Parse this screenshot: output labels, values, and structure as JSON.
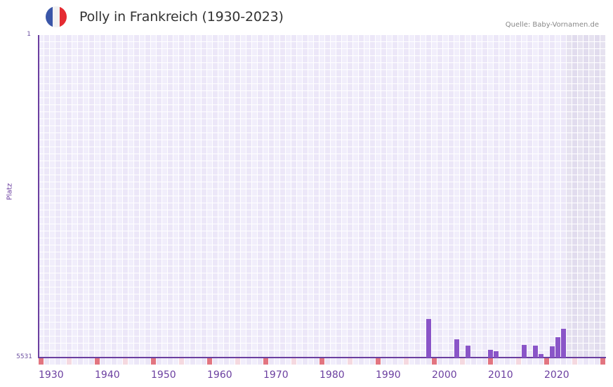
{
  "header": {
    "title": "Polly in Frankreich (1930-2023)",
    "source": "Quelle: Baby-Vornamen.de",
    "flag": {
      "icon": "france-flag-icon",
      "colors": [
        "#3a56a8",
        "#f2f2f2",
        "#e52b32"
      ]
    }
  },
  "colors": {
    "bar": "#8a55c8",
    "axis": "#6b3fa0",
    "cell_a": "#f1eefb",
    "cell_b": "#ece7f8",
    "future_a": "#e6e2f0",
    "future_b": "#e1dcee",
    "decade_marker": "#e27580",
    "half_decade_marker": "#f5d9e0"
  },
  "chart_data": {
    "type": "bar",
    "title": "Polly in Frankreich (1930-2023)",
    "xlabel": "",
    "ylabel": "Platz",
    "y_inverted": true,
    "ylim": [
      1,
      5531
    ],
    "xlim": [
      1930,
      2030
    ],
    "x_tick_labels": [
      "1930",
      "1940",
      "1950",
      "1960",
      "1970",
      "1980",
      "1990",
      "2000",
      "2010",
      "2020"
    ],
    "y_tick_labels": [
      "1",
      "5531"
    ],
    "grid": true,
    "shaded_future_from": 2024,
    "categories": [
      1999,
      2004,
      2006,
      2010,
      2011,
      2016,
      2018,
      2019,
      2021,
      2022,
      2023
    ],
    "values": [
      4870,
      5218,
      5327,
      5399,
      5423,
      5315,
      5327,
      5471,
      5339,
      5182,
      5038
    ]
  },
  "axis": {
    "ylabel": "Platz",
    "ytop": "1",
    "ybottom": "5531"
  }
}
